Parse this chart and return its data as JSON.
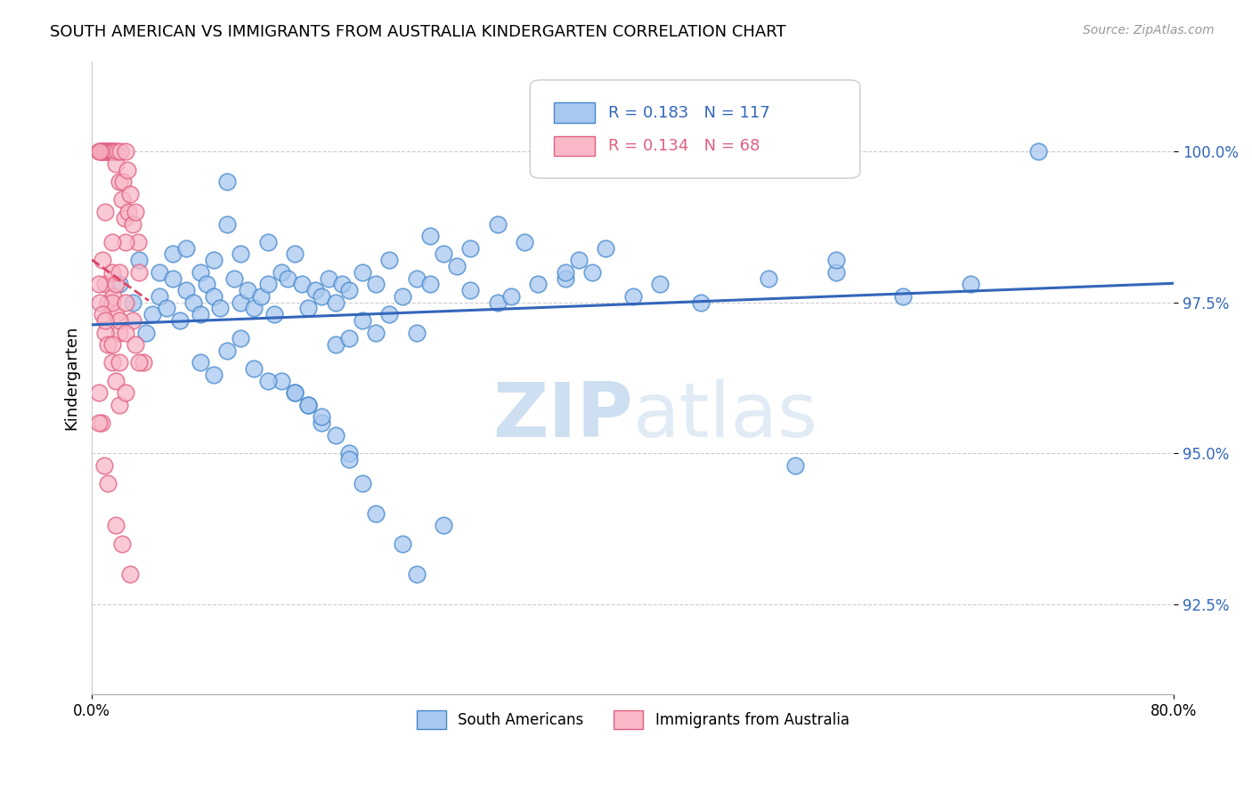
{
  "title": "SOUTH AMERICAN VS IMMIGRANTS FROM AUSTRALIA KINDERGARTEN CORRELATION CHART",
  "source": "Source: ZipAtlas.com",
  "ylabel": "Kindergarten",
  "x_min": 0.0,
  "x_max": 0.8,
  "y_min": 91.0,
  "y_max": 101.5,
  "y_ticks": [
    92.5,
    95.0,
    97.5,
    100.0
  ],
  "y_tick_labels": [
    "92.5%",
    "95.0%",
    "97.5%",
    "100.0%"
  ],
  "x_tick_labels": [
    "0.0%",
    "80.0%"
  ],
  "legend_blue_r": "0.183",
  "legend_blue_n": "117",
  "legend_pink_r": "0.134",
  "legend_pink_n": "68",
  "legend_blue_label": "South Americans",
  "legend_pink_label": "Immigrants from Australia",
  "blue_face_color": "#A8C8F0",
  "blue_edge_color": "#4488CC",
  "pink_face_color": "#F8B8C8",
  "pink_edge_color": "#E06080",
  "blue_line_color": "#3366BB",
  "pink_line_color": "#DD4466",
  "watermark_color": "#C8DCF0",
  "blue_scatter_x": [
    0.02,
    0.03,
    0.035,
    0.04,
    0.045,
    0.05,
    0.05,
    0.055,
    0.06,
    0.06,
    0.065,
    0.07,
    0.07,
    0.075,
    0.08,
    0.08,
    0.085,
    0.09,
    0.09,
    0.095,
    0.1,
    0.1,
    0.105,
    0.11,
    0.11,
    0.115,
    0.12,
    0.125,
    0.13,
    0.13,
    0.135,
    0.14,
    0.145,
    0.15,
    0.155,
    0.16,
    0.165,
    0.17,
    0.175,
    0.18,
    0.185,
    0.19,
    0.2,
    0.21,
    0.22,
    0.23,
    0.24,
    0.25,
    0.26,
    0.27,
    0.28,
    0.3,
    0.31,
    0.33,
    0.35,
    0.37,
    0.4,
    0.42,
    0.45,
    0.5,
    0.55,
    0.6,
    0.65,
    0.7,
    0.25,
    0.28,
    0.3,
    0.32,
    0.35,
    0.2,
    0.22,
    0.24,
    0.18,
    0.19,
    0.21,
    0.14,
    0.15,
    0.16,
    0.17,
    0.19,
    0.2,
    0.08,
    0.09,
    0.1,
    0.11,
    0.12,
    0.13,
    0.15,
    0.16,
    0.17,
    0.18,
    0.19,
    0.21,
    0.23,
    0.24,
    0.26,
    0.55,
    0.52,
    0.38,
    0.36
  ],
  "blue_scatter_y": [
    97.8,
    97.5,
    98.2,
    97.0,
    97.3,
    97.6,
    98.0,
    97.4,
    97.9,
    98.3,
    97.2,
    97.7,
    98.4,
    97.5,
    97.3,
    98.0,
    97.8,
    97.6,
    98.2,
    97.4,
    99.5,
    98.8,
    97.9,
    97.5,
    98.3,
    97.7,
    97.4,
    97.6,
    98.5,
    97.8,
    97.3,
    98.0,
    97.9,
    98.3,
    97.8,
    97.4,
    97.7,
    97.6,
    97.9,
    97.5,
    97.8,
    97.7,
    98.0,
    97.8,
    98.2,
    97.6,
    97.9,
    97.8,
    98.3,
    98.1,
    97.7,
    97.5,
    97.6,
    97.8,
    97.9,
    98.0,
    97.6,
    97.8,
    97.5,
    97.9,
    98.0,
    97.6,
    97.8,
    100.0,
    98.6,
    98.4,
    98.8,
    98.5,
    98.0,
    97.2,
    97.3,
    97.0,
    96.8,
    96.9,
    97.0,
    96.2,
    96.0,
    95.8,
    95.5,
    95.0,
    94.5,
    96.5,
    96.3,
    96.7,
    96.9,
    96.4,
    96.2,
    96.0,
    95.8,
    95.6,
    95.3,
    94.9,
    94.0,
    93.5,
    93.0,
    93.8,
    98.2,
    94.8,
    98.4,
    98.2
  ],
  "pink_scatter_x": [
    0.005,
    0.007,
    0.008,
    0.009,
    0.01,
    0.011,
    0.012,
    0.013,
    0.014,
    0.015,
    0.016,
    0.017,
    0.018,
    0.019,
    0.02,
    0.021,
    0.022,
    0.023,
    0.024,
    0.025,
    0.026,
    0.027,
    0.028,
    0.03,
    0.032,
    0.034,
    0.006,
    0.008,
    0.01,
    0.012,
    0.015,
    0.016,
    0.018,
    0.02,
    0.025,
    0.03,
    0.035,
    0.015,
    0.018,
    0.02,
    0.025,
    0.032,
    0.038,
    0.005,
    0.006,
    0.008,
    0.01,
    0.012,
    0.015,
    0.018,
    0.02,
    0.025,
    0.005,
    0.007,
    0.009,
    0.012,
    0.018,
    0.022,
    0.028,
    0.035,
    0.01,
    0.015,
    0.02,
    0.01,
    0.015,
    0.02,
    0.025,
    0.005
  ],
  "pink_scatter_y": [
    100.0,
    100.0,
    100.0,
    100.0,
    100.0,
    100.0,
    100.0,
    100.0,
    100.0,
    100.0,
    100.0,
    100.0,
    99.8,
    100.0,
    99.5,
    100.0,
    99.2,
    99.5,
    98.9,
    100.0,
    99.7,
    99.0,
    99.3,
    98.8,
    99.0,
    98.5,
    100.0,
    98.2,
    97.8,
    97.5,
    98.0,
    97.6,
    97.3,
    97.0,
    98.5,
    97.2,
    98.0,
    97.5,
    97.8,
    97.2,
    97.0,
    96.8,
    96.5,
    97.8,
    97.5,
    97.3,
    97.0,
    96.8,
    96.5,
    96.2,
    95.8,
    97.5,
    96.0,
    95.5,
    94.8,
    94.5,
    93.8,
    93.5,
    93.0,
    96.5,
    99.0,
    98.5,
    98.0,
    97.2,
    96.8,
    96.5,
    96.0,
    95.5
  ]
}
